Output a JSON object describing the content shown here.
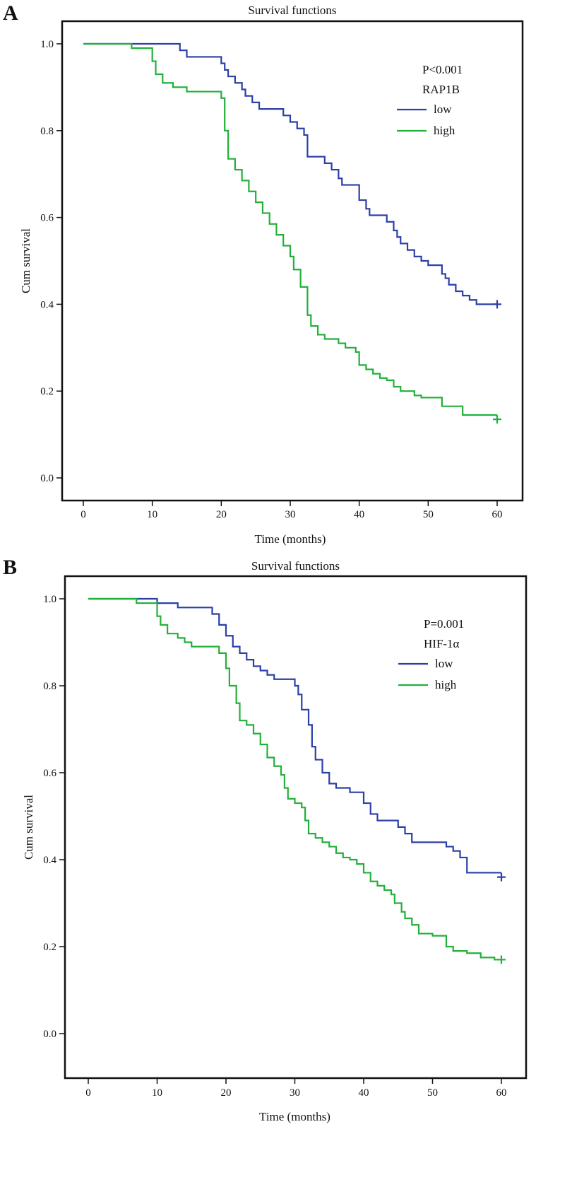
{
  "chart_data": [
    {
      "type": "line",
      "panel_label": "A",
      "title": "Survival functions",
      "xlabel": "Time  (months)",
      "ylabel": "Cum survival",
      "xlim": [
        0,
        60
      ],
      "ylim": [
        0,
        1
      ],
      "xticks": [
        "0",
        "10",
        "20",
        "30",
        "40",
        "50",
        "60"
      ],
      "yticks": [
        "0.0",
        "0.2",
        "0.4",
        "0.6",
        "0.8",
        "1.0"
      ],
      "grid": false,
      "legend_placement": "top-right",
      "annotation": "P<0.001",
      "legend_title": "RAP1B",
      "series": [
        {
          "name": "low",
          "color": "#2b3fa8",
          "steps": [
            [
              0,
              1
            ],
            [
              14,
              0.985
            ],
            [
              15,
              0.97
            ],
            [
              20,
              0.955
            ],
            [
              20.5,
              0.94
            ],
            [
              21,
              0.925
            ],
            [
              22,
              0.91
            ],
            [
              23,
              0.895
            ],
            [
              23.5,
              0.88
            ],
            [
              24.5,
              0.865
            ],
            [
              25.5,
              0.85
            ],
            [
              29,
              0.835
            ],
            [
              30,
              0.82
            ],
            [
              31,
              0.805
            ],
            [
              32,
              0.79
            ],
            [
              32.5,
              0.74
            ],
            [
              35,
              0.725
            ],
            [
              36,
              0.71
            ],
            [
              37,
              0.69
            ],
            [
              37.5,
              0.675
            ],
            [
              40,
              0.64
            ],
            [
              41,
              0.62
            ],
            [
              41.5,
              0.605
            ],
            [
              44,
              0.59
            ],
            [
              45,
              0.57
            ],
            [
              45.5,
              0.555
            ],
            [
              46,
              0.54
            ],
            [
              47,
              0.525
            ],
            [
              48,
              0.51
            ],
            [
              49,
              0.5
            ],
            [
              50,
              0.49
            ],
            [
              52,
              0.47
            ],
            [
              52.5,
              0.46
            ],
            [
              53,
              0.445
            ],
            [
              54,
              0.43
            ],
            [
              55,
              0.42
            ],
            [
              56,
              0.41
            ],
            [
              57,
              0.4
            ],
            [
              60,
              0.4
            ]
          ],
          "censored": [
            [
              60,
              0.4
            ]
          ]
        },
        {
          "name": "high",
          "color": "#22b03a",
          "steps": [
            [
              0,
              1
            ],
            [
              7,
              0.99
            ],
            [
              10,
              0.96
            ],
            [
              10.5,
              0.93
            ],
            [
              11.5,
              0.91
            ],
            [
              13,
              0.9
            ],
            [
              15,
              0.89
            ],
            [
              20,
              0.875
            ],
            [
              20.5,
              0.8
            ],
            [
              21,
              0.735
            ],
            [
              22,
              0.71
            ],
            [
              23,
              0.685
            ],
            [
              24,
              0.66
            ],
            [
              25,
              0.635
            ],
            [
              26,
              0.61
            ],
            [
              27,
              0.585
            ],
            [
              28,
              0.56
            ],
            [
              29,
              0.535
            ],
            [
              30,
              0.51
            ],
            [
              30.5,
              0.48
            ],
            [
              31.5,
              0.44
            ],
            [
              32.5,
              0.375
            ],
            [
              33,
              0.35
            ],
            [
              34,
              0.33
            ],
            [
              35,
              0.32
            ],
            [
              37,
              0.31
            ],
            [
              38,
              0.3
            ],
            [
              39.5,
              0.29
            ],
            [
              40,
              0.26
            ],
            [
              41,
              0.25
            ],
            [
              42,
              0.24
            ],
            [
              43,
              0.23
            ],
            [
              44,
              0.225
            ],
            [
              45,
              0.21
            ],
            [
              46,
              0.2
            ],
            [
              48,
              0.19
            ],
            [
              49,
              0.185
            ],
            [
              52,
              0.165
            ],
            [
              55,
              0.145
            ],
            [
              60,
              0.145
            ]
          ],
          "censored": [
            [
              60,
              0.135
            ]
          ]
        }
      ]
    },
    {
      "type": "line",
      "panel_label": "B",
      "title": "Survival functions",
      "xlabel": "Time  (months)",
      "ylabel": "Cum survival",
      "xlim": [
        0,
        60
      ],
      "ylim": [
        0,
        1
      ],
      "xticks": [
        "0",
        "10",
        "20",
        "30",
        "40",
        "50",
        "60"
      ],
      "yticks": [
        "0.0",
        "0.2",
        "0.4",
        "0.6",
        "0.8",
        "1.0"
      ],
      "grid": false,
      "legend_placement": "top-right",
      "annotation": "P=0.001",
      "legend_title": "HIF-1α",
      "series": [
        {
          "name": "low",
          "color": "#2b3fa8",
          "steps": [
            [
              0,
              1
            ],
            [
              10,
              0.99
            ],
            [
              13,
              0.98
            ],
            [
              18,
              0.965
            ],
            [
              19,
              0.94
            ],
            [
              20,
              0.915
            ],
            [
              21,
              0.89
            ],
            [
              22,
              0.875
            ],
            [
              23,
              0.86
            ],
            [
              24,
              0.845
            ],
            [
              25,
              0.835
            ],
            [
              26,
              0.825
            ],
            [
              27,
              0.815
            ],
            [
              30,
              0.8
            ],
            [
              30.5,
              0.78
            ],
            [
              31,
              0.745
            ],
            [
              32,
              0.71
            ],
            [
              32.5,
              0.66
            ],
            [
              33,
              0.63
            ],
            [
              34,
              0.6
            ],
            [
              35,
              0.575
            ],
            [
              36,
              0.565
            ],
            [
              38,
              0.555
            ],
            [
              40,
              0.53
            ],
            [
              41,
              0.505
            ],
            [
              42,
              0.49
            ],
            [
              45,
              0.475
            ],
            [
              46,
              0.46
            ],
            [
              47,
              0.44
            ],
            [
              52,
              0.43
            ],
            [
              53,
              0.42
            ],
            [
              54,
              0.405
            ],
            [
              55,
              0.37
            ],
            [
              60,
              0.37
            ]
          ],
          "censored": [
            [
              60,
              0.36
            ]
          ]
        },
        {
          "name": "high",
          "color": "#22b03a",
          "steps": [
            [
              0,
              1
            ],
            [
              7,
              0.99
            ],
            [
              10,
              0.96
            ],
            [
              10.5,
              0.94
            ],
            [
              11.5,
              0.92
            ],
            [
              13,
              0.91
            ],
            [
              14,
              0.9
            ],
            [
              15,
              0.89
            ],
            [
              19,
              0.875
            ],
            [
              20,
              0.84
            ],
            [
              20.5,
              0.8
            ],
            [
              21.5,
              0.76
            ],
            [
              22,
              0.72
            ],
            [
              23,
              0.71
            ],
            [
              24,
              0.69
            ],
            [
              25,
              0.665
            ],
            [
              26,
              0.635
            ],
            [
              27,
              0.615
            ],
            [
              28,
              0.595
            ],
            [
              28.5,
              0.565
            ],
            [
              29,
              0.54
            ],
            [
              30,
              0.53
            ],
            [
              31,
              0.52
            ],
            [
              31.5,
              0.49
            ],
            [
              32,
              0.46
            ],
            [
              33,
              0.45
            ],
            [
              34,
              0.44
            ],
            [
              35,
              0.43
            ],
            [
              36,
              0.415
            ],
            [
              37,
              0.405
            ],
            [
              38,
              0.4
            ],
            [
              39,
              0.39
            ],
            [
              40,
              0.37
            ],
            [
              41,
              0.35
            ],
            [
              42,
              0.34
            ],
            [
              43,
              0.33
            ],
            [
              44,
              0.32
            ],
            [
              44.5,
              0.3
            ],
            [
              45.5,
              0.28
            ],
            [
              46,
              0.265
            ],
            [
              47,
              0.25
            ],
            [
              48,
              0.23
            ],
            [
              50,
              0.225
            ],
            [
              52,
              0.2
            ],
            [
              53,
              0.19
            ],
            [
              55,
              0.185
            ],
            [
              57,
              0.175
            ],
            [
              59,
              0.17
            ],
            [
              60,
              0.17
            ]
          ],
          "censored": [
            [
              60,
              0.17
            ]
          ]
        }
      ]
    }
  ]
}
